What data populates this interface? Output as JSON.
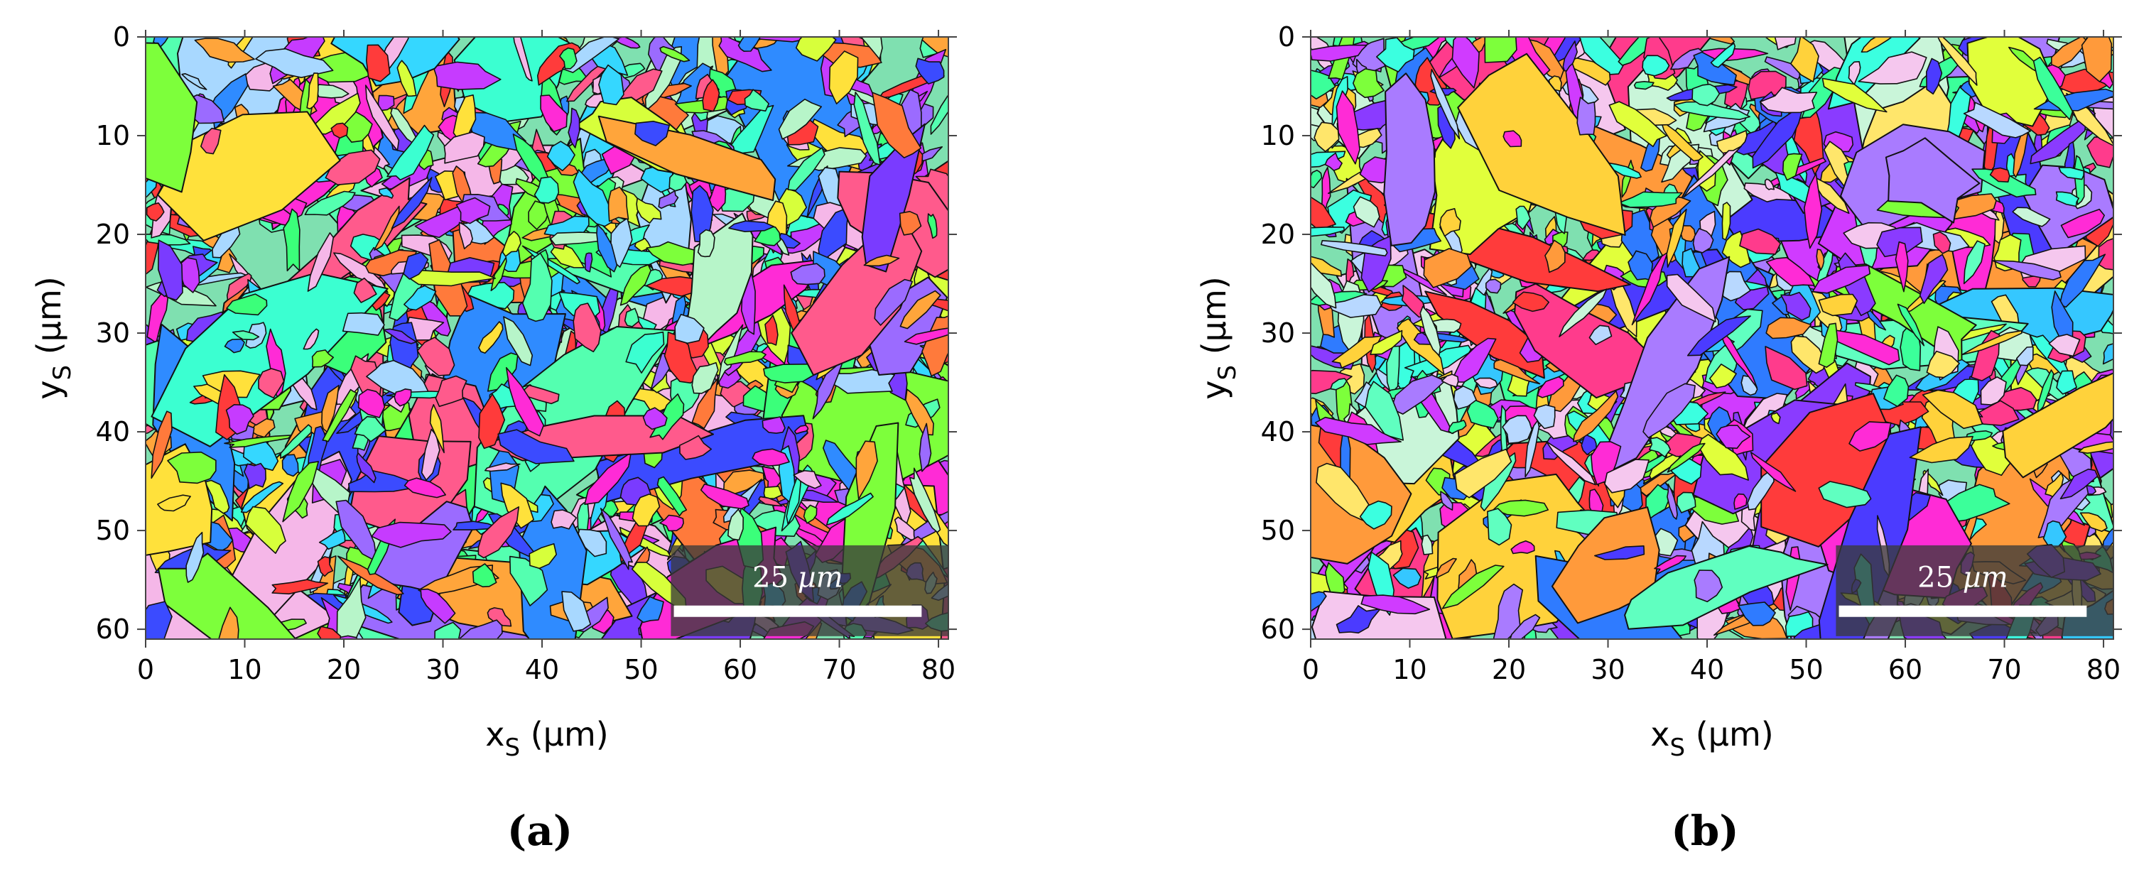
{
  "panels": [
    {
      "id": "a",
      "caption": "(a)",
      "x_axis": {
        "label": "x",
        "sub": "S",
        "unit": " (µm)",
        "ticks": [
          0,
          10,
          20,
          30,
          40,
          50,
          60,
          70,
          80
        ],
        "range": [
          0,
          81
        ]
      },
      "y_axis": {
        "label": "y",
        "sub": "S",
        "unit": " (µm)",
        "ticks": [
          0,
          10,
          20,
          30,
          40,
          50,
          60
        ],
        "range": [
          0,
          61
        ]
      },
      "scale_bar": {
        "value": "25",
        "unit": "µm",
        "length_um": 25
      },
      "seed": 7,
      "palette": [
        "#ff3b3b",
        "#ff5a8c",
        "#ff2bd6",
        "#c63bff",
        "#7a3bff",
        "#3b4bff",
        "#2f8bff",
        "#35d7ff",
        "#3bffd1",
        "#3bff7a",
        "#7dff3b",
        "#d7ff3b",
        "#ffe13b",
        "#ffa53b",
        "#b7f5c9",
        "#a8d8ff",
        "#f5b7e8",
        "#9b6bff",
        "#54ffb0",
        "#ff7a3b"
      ]
    },
    {
      "id": "b",
      "caption": "(b)",
      "x_axis": {
        "label": "x",
        "sub": "S",
        "unit": " (µm)",
        "ticks": [
          0,
          10,
          20,
          30,
          40,
          50,
          60,
          70,
          80
        ],
        "range": [
          0,
          81
        ]
      },
      "y_axis": {
        "label": "y",
        "sub": "S",
        "unit": " (µm)",
        "ticks": [
          0,
          10,
          20,
          30,
          40,
          50,
          60
        ],
        "range": [
          0,
          61
        ]
      },
      "scale_bar": {
        "value": "25",
        "unit": "µm",
        "length_um": 25
      },
      "seed": 19,
      "palette": [
        "#ff3b8c",
        "#ff2bd6",
        "#d03bff",
        "#8a3bff",
        "#4b3bff",
        "#2f7bff",
        "#35c7ff",
        "#3bffe0",
        "#3bff9a",
        "#7dff3b",
        "#e1ff3b",
        "#ffd23b",
        "#ff9a3b",
        "#ff3b3b",
        "#c9f5d9",
        "#b8d8ff",
        "#f5c7ee",
        "#a97bff",
        "#60ffc0",
        "#ffe66b"
      ]
    }
  ]
}
